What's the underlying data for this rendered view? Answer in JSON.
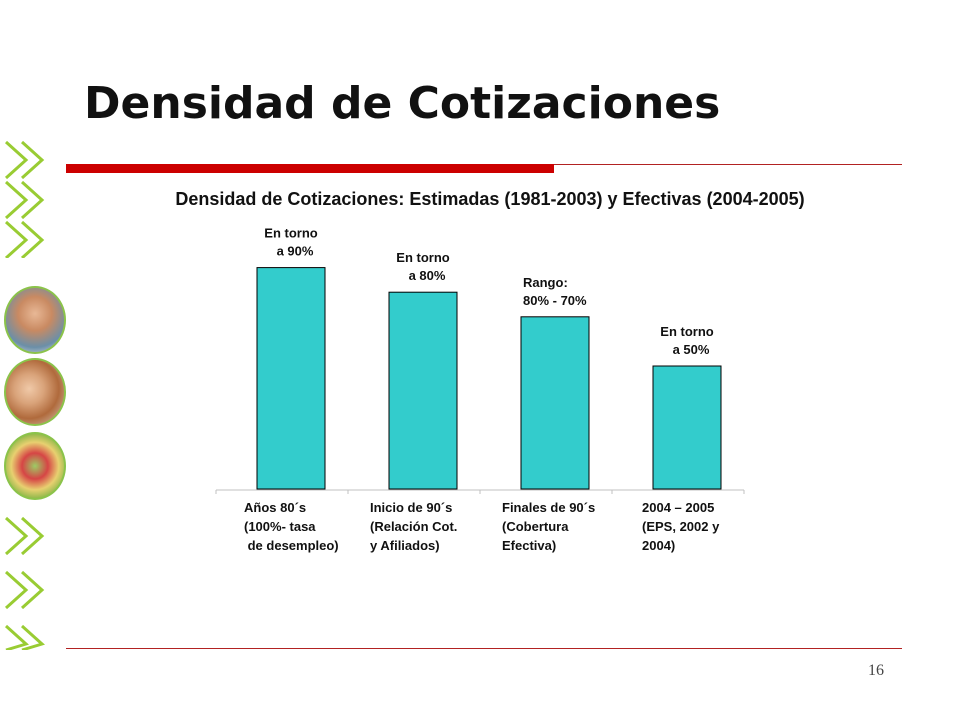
{
  "slide": {
    "title": "Densidad de Cotizaciones",
    "page_number": "16"
  },
  "colors": {
    "accent_red": "#cc0000",
    "bar_fill": "#33cccc",
    "deco_green": "#99cc33"
  },
  "decor": {
    "icons": [
      "chevron-double-right-icon",
      "person-photo-icon",
      "family-photo-icon",
      "market-photo-icon"
    ]
  },
  "chart_data": {
    "type": "bar",
    "title": "Densidad de Cotizaciones: Estimadas (1981-2003) y Efectivas (2004-2005)",
    "categories": [
      [
        "Años 80´s",
        "(100%- tasa",
        " de desempleo)"
      ],
      [
        "Inicio de 90´s",
        "(Relación Cot.",
        "y Afiliados)"
      ],
      [
        "Finales de 90´s",
        "(Cobertura",
        "Efectiva)"
      ],
      [
        "2004 – 2005",
        "(EPS, 2002 y",
        "2004)"
      ]
    ],
    "values": [
      90,
      80,
      70,
      50
    ],
    "data_labels": [
      [
        "En torno",
        "a 90%"
      ],
      [
        "En torno",
        "a 80%"
      ],
      [
        "Rango:",
        "80% - 70%"
      ],
      [
        "En torno",
        "a 50%"
      ]
    ],
    "ylim": [
      0,
      100
    ],
    "xlabel": "",
    "ylabel": "",
    "grid": false,
    "legend": "none"
  }
}
